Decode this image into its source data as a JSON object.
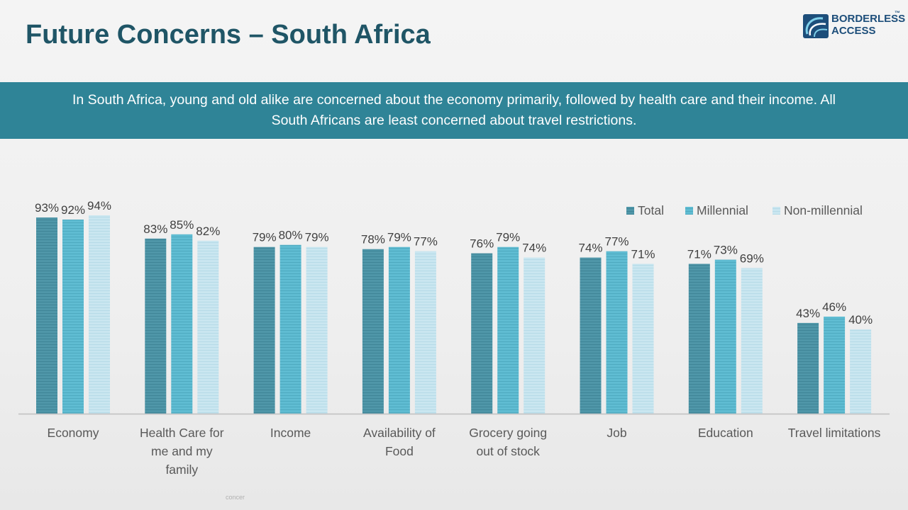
{
  "header": {
    "title": "Future Concerns – South Africa",
    "logo": {
      "line1": "BORDERLESS",
      "line2": "ACCESS",
      "tm": "™",
      "icon": "borderless-access-logo-icon"
    }
  },
  "banner": {
    "line1": "In South Africa, young and old alike are concerned about the economy primarily, followed by health care and their income. All",
    "line2": "South Africans are least concerned about travel restrictions."
  },
  "footnote": "concer",
  "colors": {
    "title": "#1f5566",
    "banner": "#2f8497",
    "total": "#4f96a8",
    "millennial": "#5fbcd2",
    "non_millennial": "#c4e3ee"
  },
  "chart_data": {
    "type": "bar",
    "categories": [
      [
        "Economy"
      ],
      [
        "Health Care for",
        "me and my",
        "family"
      ],
      [
        "Income"
      ],
      [
        "Availability of",
        "Food"
      ],
      [
        "Grocery going",
        "out of stock"
      ],
      [
        "Job"
      ],
      [
        "Education"
      ],
      [
        "Travel limitations"
      ]
    ],
    "series": [
      {
        "name": "Total",
        "values": [
          93,
          83,
          79,
          78,
          76,
          74,
          71,
          43
        ],
        "color": "#4f96a8"
      },
      {
        "name": "Millennial",
        "values": [
          92,
          85,
          80,
          79,
          79,
          77,
          73,
          46
        ],
        "color": "#5fbcd2"
      },
      {
        "name": "Non-millennial",
        "values": [
          94,
          82,
          79,
          77,
          74,
          71,
          69,
          40
        ],
        "color": "#c4e3ee"
      }
    ],
    "value_suffix": "%",
    "ylim": [
      0,
      100
    ],
    "legend_position": "top-right",
    "grid": false
  }
}
